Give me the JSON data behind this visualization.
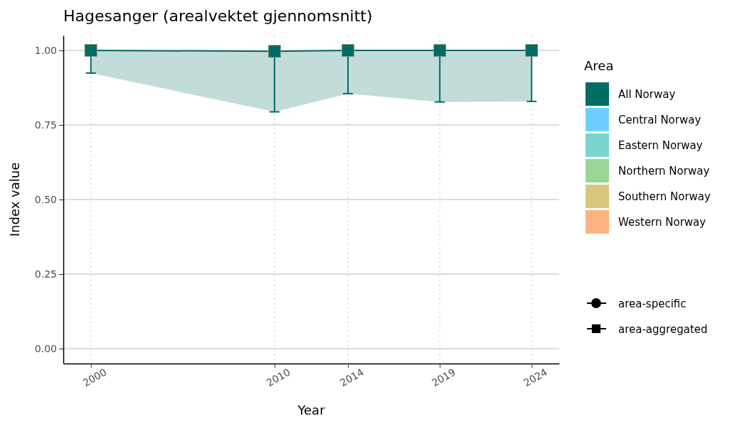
{
  "chart_data": {
    "type": "line",
    "title": "Hagesanger (arealvektet gjennomsnitt)",
    "xlabel": "Year",
    "ylabel": "Index value",
    "legend_title": "Area",
    "x": [
      2000,
      2010,
      2014,
      2019,
      2024
    ],
    "series": [
      {
        "name": "All Norway",
        "color": "#006c66",
        "marker": "square",
        "values": [
          1.0,
          0.997,
          1.0,
          1.0,
          1.0
        ],
        "errors": [
          [
            0.924,
            1.0
          ],
          [
            0.794,
            0.997
          ],
          [
            0.855,
            1.0
          ],
          [
            0.827,
            1.0
          ],
          [
            0.829,
            1.0
          ]
        ],
        "lower": [
          0.924,
          0.794,
          0.855,
          0.827,
          0.829
        ],
        "upper": [
          1.0,
          0.997,
          1.0,
          1.0,
          1.0
        ]
      },
      {
        "name": "Central Norway",
        "color": "#6dcfff",
        "values": [
          null,
          null,
          null,
          null,
          null
        ]
      },
      {
        "name": "Eastern Norway",
        "color": "#7ad6cc",
        "values": [
          null,
          null,
          null,
          null,
          null
        ]
      },
      {
        "name": "Northern Norway",
        "color": "#9ad496",
        "values": [
          null,
          null,
          null,
          null,
          null
        ]
      },
      {
        "name": "Southern Norway",
        "color": "#d8c77a",
        "values": [
          null,
          null,
          null,
          null,
          null
        ]
      },
      {
        "name": "Western Norway",
        "color": "#fdb381",
        "values": [
          null,
          null,
          null,
          null,
          null
        ]
      }
    ],
    "annotations": [
      "area-specific",
      "area-aggregated"
    ],
    "xlim": [
      1998.5,
      2025.5
    ],
    "xticks": [
      2000,
      2010,
      2014,
      2019,
      2024
    ],
    "ylim": [
      -0.05,
      1.05
    ],
    "yticks": [
      {
        "value": 0,
        "label": "0.00"
      },
      {
        "value": 0.25,
        "label": "0.25"
      },
      {
        "value": 0.5,
        "label": "0.50"
      },
      {
        "value": 0.75,
        "label": "0.75"
      },
      {
        "value": 1,
        "label": "1.00"
      }
    ],
    "grid": true,
    "legend": "right"
  }
}
